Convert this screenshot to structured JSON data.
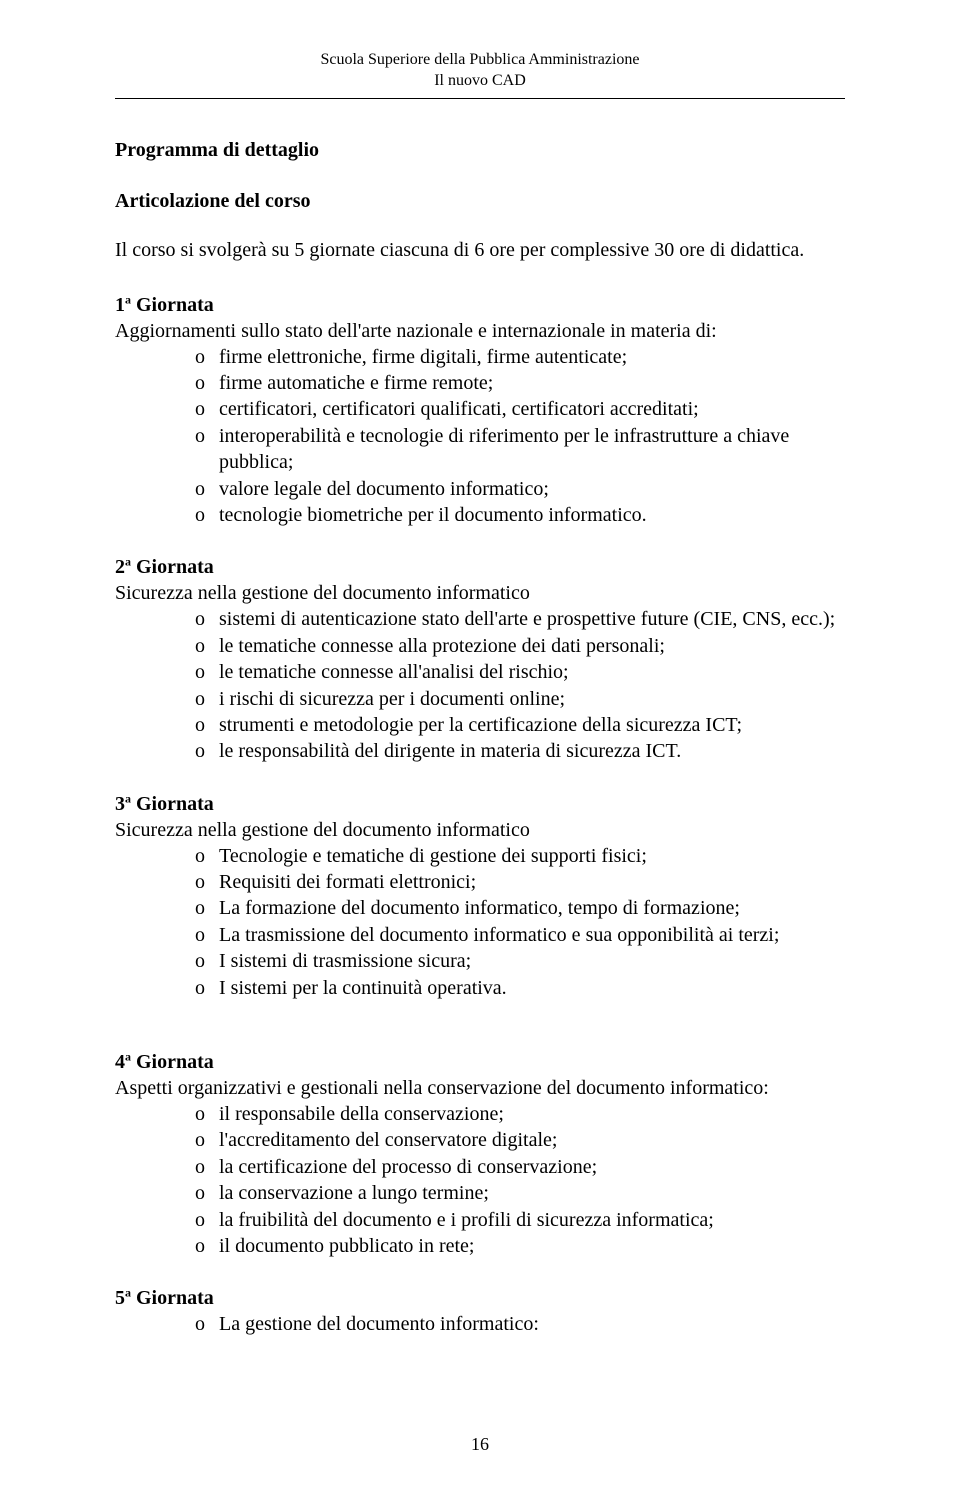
{
  "header": {
    "line1": "Scuola Superiore della Pubblica Amministrazione",
    "line2": "Il nuovo CAD"
  },
  "title": "Programma di dettaglio",
  "subtitle": "Articolazione del corso",
  "intro": "Il corso si svolgerà su 5 giornate ciascuna di 6 ore per complessive 30 ore di didattica.",
  "bullet_marker": "o",
  "days": [
    {
      "label_pre": "1",
      "label_sup": "a",
      "label_post": " Giornata",
      "subtitle": "Aggiornamenti sullo stato dell'arte nazionale e internazionale in materia di:",
      "items": [
        "firme elettroniche, firme digitali, firme autenticate;",
        "firme automatiche e firme remote;",
        "certificatori, certificatori qualificati, certificatori accreditati;",
        "interoperabilità e tecnologie di riferimento per le infrastrutture a chiave pubblica;",
        "valore legale del documento informatico;",
        "tecnologie biometriche per il documento informatico."
      ]
    },
    {
      "label_pre": "2",
      "label_sup": "a",
      "label_post": " Giornata",
      "subtitle": "Sicurezza nella gestione del documento informatico",
      "items": [
        "sistemi di autenticazione stato dell'arte e prospettive future (CIE, CNS, ecc.);",
        "le tematiche connesse alla protezione dei dati personali;",
        "le tematiche connesse all'analisi del rischio;",
        "i rischi di sicurezza per i documenti online;",
        "strumenti e metodologie per la certificazione della sicurezza ICT;",
        "le responsabilità del dirigente in materia di sicurezza ICT."
      ]
    },
    {
      "label_pre": "3",
      "label_sup": "a",
      "label_post": " Giornata",
      "subtitle": "Sicurezza nella gestione del documento informatico",
      "items": [
        "Tecnologie e tematiche di gestione dei supporti fisici;",
        "Requisiti dei formati elettronici;",
        "La formazione del documento informatico, tempo di formazione;",
        "La trasmissione del documento informatico e sua opponibilità ai terzi;",
        "I  sistemi di trasmissione sicura;",
        "I sistemi per la continuità operativa."
      ]
    },
    {
      "label_pre": "4",
      "label_sup": "a",
      "label_post": " Giornata",
      "subtitle": "Aspetti organizzativi e gestionali nella conservazione del documento informatico:",
      "items": [
        "il responsabile della conservazione;",
        "l'accreditamento del conservatore digitale;",
        "la certificazione del processo di conservazione;",
        "la conservazione a lungo termine;",
        "la fruibilità del documento e i profili di sicurezza informatica;",
        "il documento pubblicato in rete;"
      ],
      "margin_top_extra": true
    },
    {
      "label_pre": "5",
      "label_sup": "a",
      "label_post": " Giornata",
      "subtitle": "",
      "items": [
        "La gestione del documento informatico:"
      ]
    }
  ],
  "page_number": "16"
}
